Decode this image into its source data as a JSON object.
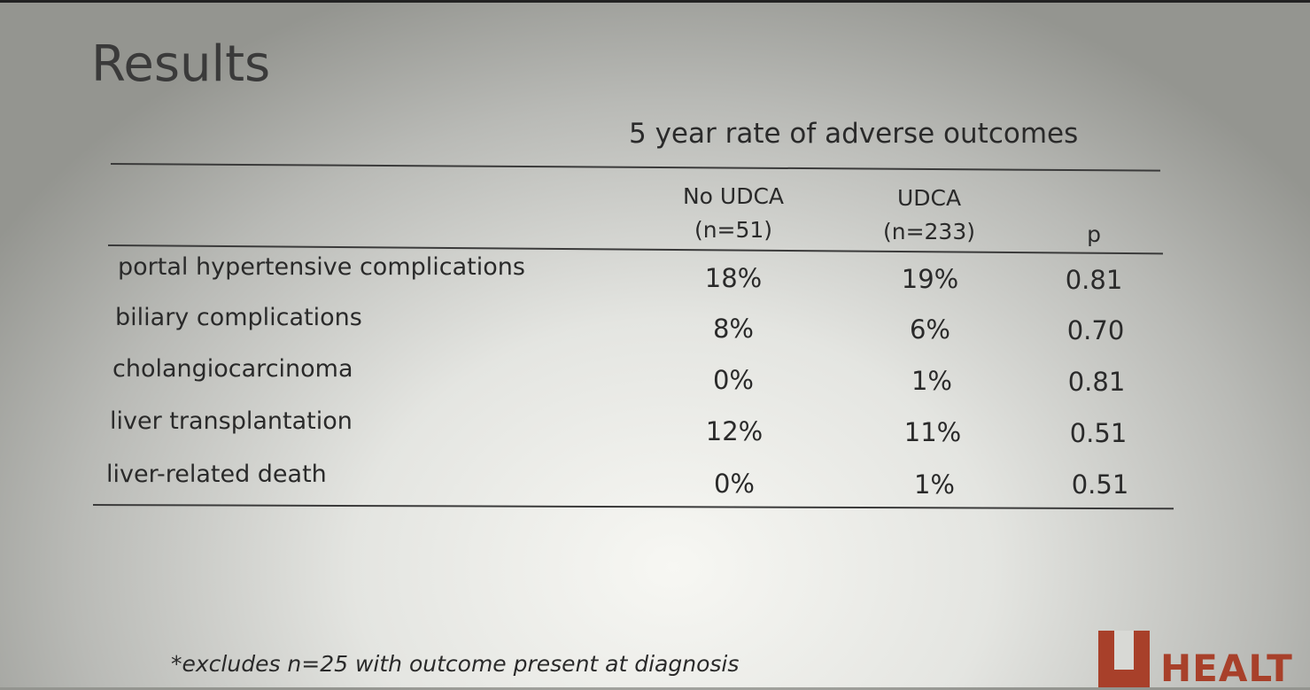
{
  "slide": {
    "title": "Results",
    "subtitle": "5 year rate of adverse outcomes",
    "columns": [
      {
        "line1": "No UDCA",
        "line2": "(n=51)"
      },
      {
        "line1": "UDCA",
        "line2": "(n=233)"
      },
      {
        "line1": "",
        "line2": "p"
      }
    ],
    "rows": [
      {
        "label": "portal hypertensive complications",
        "no_udca": "18%",
        "udca": "19%",
        "p": "0.81"
      },
      {
        "label": "biliary complications",
        "no_udca": "8%",
        "udca": "6%",
        "p": "0.70"
      },
      {
        "label": "cholangiocarcinoma",
        "no_udca": "0%",
        "udca": "1%",
        "p": "0.81"
      },
      {
        "label": "liver transplantation",
        "no_udca": "12%",
        "udca": "11%",
        "p": "0.51"
      },
      {
        "label": "liver-related death",
        "no_udca": "0%",
        "udca": "1%",
        "p": "0.51"
      }
    ],
    "footnote": "*excludes n=25 with outcome  present at diagnosis",
    "logo_text": "HEALT"
  }
}
